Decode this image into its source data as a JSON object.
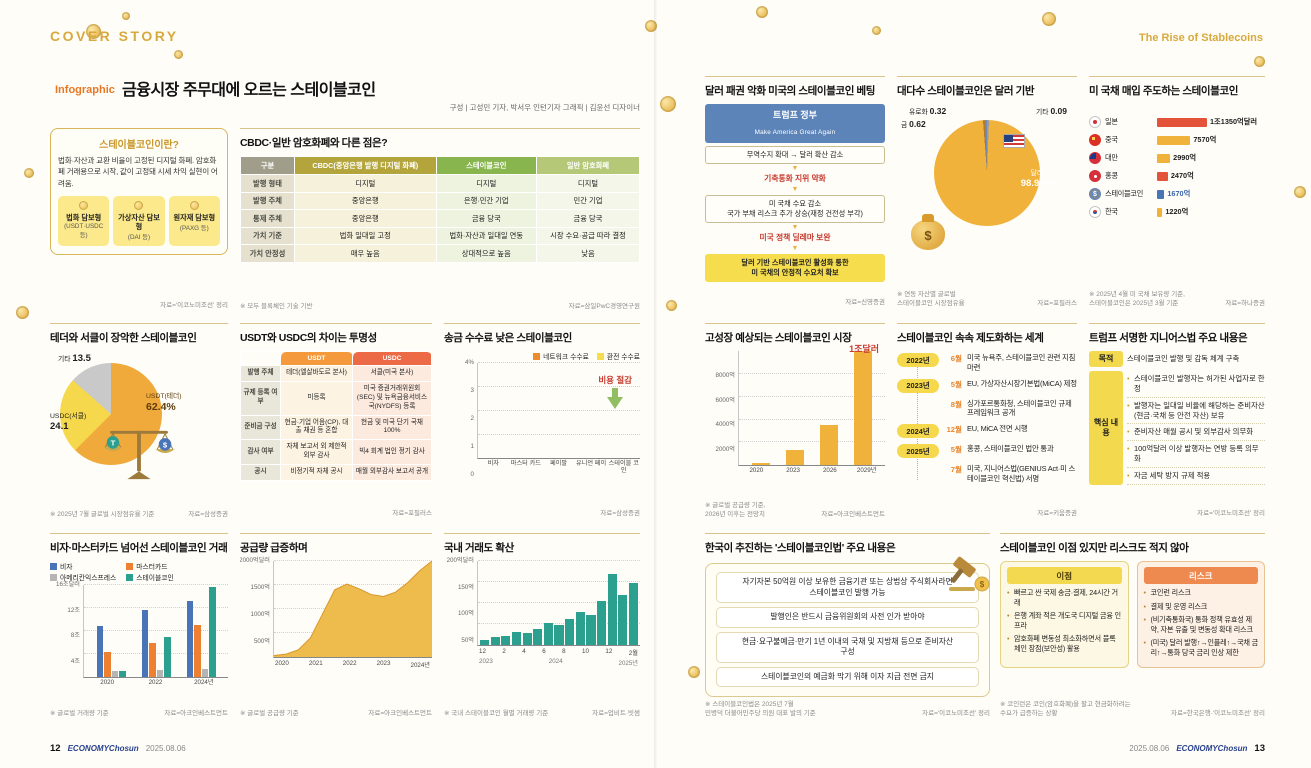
{
  "meta": {
    "cover_story": "COVER STORY",
    "rise": "The Rise of Stablecoins",
    "infographic": "Infographic",
    "title": "금융시장 주무대에 오르는 스테이블코인",
    "credit": "구성 | 고성민 기자, 박서우 인턴기자   그래픽 | 김윤선 디자이너",
    "footer_left": {
      "page": "12",
      "brand": "ECONOMYChosun",
      "date": "2025.08.06"
    },
    "footer_right": {
      "page": "13",
      "brand": "ECONOMYChosun",
      "date": "2025.08.06"
    }
  },
  "colors": {
    "accent_gold": "#d8a93c",
    "accent_orange": "#e87722",
    "highlight_yellow": "#f6d84d",
    "brand_navy": "#27418c",
    "red_text": "#c63a2e",
    "teal": "#2ba08f"
  },
  "icons": {
    "coin-icon": "gold circle",
    "balance-scale-icon": "svg scale",
    "money-bag-icon": "$",
    "us-flag-icon": "stars and stripes",
    "gavel-icon": "svg gavel",
    "down-arrow-icon": "▼",
    "flag-icons": [
      "jp",
      "cn",
      "tw",
      "hk",
      "coin",
      "kr"
    ]
  },
  "what_is": {
    "title": "스테이블코인이란?",
    "desc": "법화·자산과 교환 비율이 고정된 디지털 화폐. 암호화폐 거래용으로 시작, 값이 고정돼 시세 차익 실현이 어려움.",
    "types": [
      {
        "name": "법화 담보형",
        "example": "(USDT·USDC 등)"
      },
      {
        "name": "가상자산 담보형",
        "example": "(DAI 등)"
      },
      {
        "name": "원자재 담보형",
        "example": "(PAXG 등)"
      }
    ],
    "source": "자료='이코노미조선' 정리"
  },
  "cbdc_table": {
    "title": "CBDC·일반 암호화폐와 다른 점은?",
    "headers": [
      "구분",
      "CBDC(중앙은행 발행 디지털 화폐)",
      "스테이블코인",
      "일반 암호화폐"
    ],
    "rows": [
      {
        "label": "발행 형태",
        "cells": [
          "디지털",
          "디지털",
          "디지털"
        ]
      },
      {
        "label": "발행 주체",
        "cells": [
          "중앙은행",
          "은행·민간 기업",
          "민간 기업"
        ]
      },
      {
        "label": "통제 주체",
        "cells": [
          "중앙은행",
          "금융 당국",
          "금융 당국"
        ]
      },
      {
        "label": "가치 기준",
        "cells": [
          "법화 일대일 고정",
          "법화·자산과 일대일 연동",
          "시장 수요·공급 따라 결정"
        ]
      },
      {
        "label": "가치 안정성",
        "cells": [
          "매우 높음",
          "상대적으로 높음",
          "낮음"
        ]
      }
    ],
    "note": "※ 모두 블록체인 기술 기반",
    "source": "자료=삼일PwC경영연구원"
  },
  "market_share": {
    "title": "테더와 서클이 장악한 스테이블코인",
    "note": "※ 2025년 7월 글로벌 시장점유율 기준",
    "source": "자료=삼성증권"
  },
  "usdt_usdc": {
    "title": "USDT와 USDC의 차이는 투명성",
    "col1": "USDT",
    "col2": "USDC",
    "rows": [
      {
        "label": "발행 주체",
        "usdt": "테더(엘살바도르 본사)",
        "usdc": "서클(미국 본사)"
      },
      {
        "label": "규제 등록 여부",
        "usdt": "미등록",
        "usdc": "미국 증권거래위원회(SEC) 및 뉴욕금융서비스국(NYDFS) 등록"
      },
      {
        "label": "준비금 구성",
        "usdt": "현금·기업 어음(CP), 대출 채권 등 혼합",
        "usdc": "현금 및 미국 단기 국채 100%"
      },
      {
        "label": "감사 여부",
        "usdt": "자체 보고서 외 제한적 외부 감사",
        "usdc": "빅4 회계 법인 정기 감사"
      },
      {
        "label": "공시",
        "usdt": "비정기적 자체 공시",
        "usdc": "매월 외부감사 보고서 공개"
      }
    ],
    "source": "자료=포필러스"
  },
  "fees": {
    "title": "송금 수수료 낮은 스테이블코인",
    "annotation": "비용 절감",
    "source": "자료=삼성증권"
  },
  "volume": {
    "title": "비자·마스터카드 넘어선 스테이블코인 거래",
    "note": "※ 글로벌 거래량 기준",
    "source": "자료=아크인베스트먼트"
  },
  "supply": {
    "title": "공급량 급증하며",
    "note": "※ 글로벌 공급량 기준",
    "source": "자료=아크인베스트먼트"
  },
  "domestic": {
    "title": "국내 거래도 확산",
    "note": "※ 국내 스테이블코인 월별 거래량 기준",
    "source": "자료=업비트·빗썸"
  },
  "betting": {
    "title": "달러 패권 악화 미국의 스테이블코인 베팅",
    "header1": "트럼프 정부",
    "header2": "Make America Great Again",
    "steps": [
      {
        "type": "box",
        "text": "무역수지 확대 → 달러 확산 감소"
      },
      {
        "type": "red",
        "text": "기축통화 지위 약화"
      },
      {
        "type": "box",
        "text": "미 국채 수요 감소\n국가 부채 리스크 추가 상승(재정 건전성 부각)"
      },
      {
        "type": "red",
        "text": "미국 정책 딜레마 보완"
      },
      {
        "type": "yellow",
        "text": "달러 기반 스테이블코인 활성화 통한\n미 국채의 안정적 수요처 확보"
      }
    ],
    "source": "자료=신영증권"
  },
  "dollar_based": {
    "title": "대다수 스테이블코인은 달러 기반",
    "note": "※ 연동 자산별 글로벌\n스테이블코인 시장점유율",
    "source": "자료=포필러스"
  },
  "treasury": {
    "title": "미 국채 매입 주도하는 스테이블코인",
    "note": "※ 2025년 4월 미 국채 보유량 기준,\n스테이블코인은 2025년 3월 기준",
    "source": "자료=하나증권"
  },
  "forecast": {
    "title": "고성장 예상되는 스테이블코인 시장",
    "annotation": "1조달러",
    "note": "※ 글로벌 공급량 기준,\n2026년 이후는 전망치",
    "source": "자료=아크인베스트먼트"
  },
  "regulation": {
    "title": "스테이블코인 속속 제도화하는 세계",
    "items": [
      {
        "year": "2022년",
        "month": "6월",
        "text": "미국 뉴욕주, 스테이블코인 관련 지침 마련"
      },
      {
        "year": "2023년",
        "month": "5월",
        "text": "EU, 가상자산시장기본법(MiCA) 제정"
      },
      {
        "year": "",
        "month": "8월",
        "text": "싱가포르통화청, 스테이블코인 규제 프레임워크 공개"
      },
      {
        "year": "2024년",
        "month": "12월",
        "text": "EU, MiCA 전면 시행"
      },
      {
        "year": "2025년",
        "month": "5월",
        "text": "홍콩, 스테이블코인 법안 통과"
      },
      {
        "year": "",
        "month": "7월",
        "text": "미국, 지니어스법(GENIUS Act·미 스테이블코인 혁신법) 서명"
      }
    ],
    "source": "자료=키움증권"
  },
  "genius": {
    "title": "트럼프 서명한 지니어스법 주요 내용은",
    "purpose_label": "목적",
    "purpose": "스테이블코인 발행 및 감독 체계 구축",
    "core_label": "핵심 내용",
    "core": [
      "스테이블코인 발행자는 허가된 사업자로 한정",
      "발행자는 일대일 비율에 해당하는 준비자산(현금·국채 등 안전 자산) 보유",
      "준비자산 매월 공시 및 외부감사 의무화",
      "100억달러 이상 발행자는 연방 등록 의무화",
      "자금 세탁 방지 규제 적용"
    ],
    "source": "자료='이코노미조선' 정리"
  },
  "korea_law": {
    "title": "한국이 추진하는 '스테이블코인법' 주요 내용은",
    "items": [
      "자기자본 50억원 이상 보유한 금융기관 또는 상법상 주식회사라면 스테이블코인 발행 가능",
      "발행인은 반드시 금융위원회의 사전 인가 받아야",
      "현금·요구불예금·만기 1년 이내의 국채 및 지방채 등으로 준비자산 구성",
      "스테이블코인의 예금화 막기 위해 이자 지급 전면 금지"
    ],
    "note": "※ 스테이블코인법은 2025년 7월\n민병덕 더불어민주당 의원 대표 발의 기준",
    "source": "자료='이코노미조선' 정리"
  },
  "pros_cons": {
    "title": "스테이블코인 이점 있지만 리스크도 적지 않아",
    "pros_label": "이점",
    "pros": [
      "빠르고 싼 국제 송금·결제, 24시간 거래",
      "은행 계좌 적은 개도국 디지털 금융 인프라",
      "암호화폐 변동성 최소화하면서 블록체인 장점(보안성) 활용"
    ],
    "cons_label": "리스크",
    "cons": [
      "코인런 리스크",
      "결제 및 운영 리스크",
      "(비기축통화국) 통화 정책 유효성 제약, 자본 유출 및 변동성 확대 리스크",
      "(미국) 달러 발행↑→인플레↑→국채 금리↑→통화 당국 금리 인상 제한"
    ],
    "note": "※ 코인런은 코인(암호화폐)을 팔고 현금화하려는\n수요가 급증하는 상황",
    "source": "자료=한국은행·'이코노미조선' 정리"
  },
  "chart_data": [
    {
      "id": "market_share",
      "type": "pie",
      "title": "테더와 서클이 장악한 스테이블코인",
      "slices": [
        {
          "label": "USDT(테더)",
          "value": 62.4,
          "display": "62.4%",
          "color": "#f0a93b"
        },
        {
          "label": "USDC(서클)",
          "value": 24.1,
          "display": "24.1",
          "color": "#f6d84d"
        },
        {
          "label": "기타",
          "value": 13.5,
          "display": "13.5",
          "color": "#c9c9c9"
        }
      ]
    },
    {
      "id": "fees",
      "type": "bar",
      "stacked": true,
      "categories": [
        "비자",
        "마스터 카드",
        "페이팔",
        "유니언 페이",
        "스테이블 코인"
      ],
      "series": [
        {
          "name": "네트워크 수수료",
          "color": "#ef8a2c",
          "values": [
            2.2,
            2.0,
            2.4,
            1.8,
            0.3
          ]
        },
        {
          "name": "환전 수수료",
          "color": "#f6dd4e",
          "values": [
            1.0,
            1.1,
            1.0,
            0.8,
            0.1
          ]
        }
      ],
      "unit": "%",
      "ylim": 4,
      "ytick_values": [
        0,
        1,
        2,
        3,
        4
      ],
      "ytick_labels": [
        "0",
        "1",
        "2",
        "3",
        "4%"
      ]
    },
    {
      "id": "volume",
      "type": "bar",
      "grouped": true,
      "categories": [
        "2020",
        "2022",
        "2024년"
      ],
      "series": [
        {
          "name": "비자",
          "color": "#4a74b8",
          "values": [
            8.8,
            11.6,
            13.2
          ]
        },
        {
          "name": "마스터카드",
          "color": "#ee8031",
          "values": [
            4.4,
            6.0,
            9.0
          ]
        },
        {
          "name": "아메리칸익스프레스",
          "color": "#b5b5b5",
          "values": [
            1.0,
            1.2,
            1.5
          ]
        },
        {
          "name": "스테이블코인",
          "color": "#2ba08f",
          "values": [
            1.0,
            6.9,
            15.6
          ]
        }
      ],
      "unit": "조달러",
      "ylim": 16,
      "ytick_values": [
        4,
        8,
        12,
        16
      ],
      "ytick_labels": [
        "4조",
        "8조",
        "12조",
        "16조달러"
      ]
    },
    {
      "id": "supply",
      "type": "area",
      "color": "#eebb4d",
      "xlabels": [
        "2020",
        "2021",
        "2022",
        "2023",
        "2024년"
      ],
      "values": [
        30,
        60,
        150,
        400,
        900,
        1400,
        1520,
        1420,
        1300,
        1260,
        1350,
        1550,
        1800,
        2000
      ],
      "unit": "억달러",
      "ylim": 2000,
      "ytick_values": [
        500,
        1000,
        1500,
        2000
      ],
      "ytick_labels": [
        "500억",
        "1000억",
        "1500억",
        "2000억달러"
      ]
    },
    {
      "id": "domestic",
      "type": "bar",
      "color": "#2ba08f",
      "values": [
        12,
        18,
        22,
        30,
        28,
        38,
        52,
        48,
        62,
        78,
        72,
        105,
        168,
        118,
        148
      ],
      "xlabels": [
        "12",
        "2",
        "4",
        "6",
        "8",
        "10",
        "12",
        "2월"
      ],
      "xlabels2": [
        "2023",
        "2024",
        "2025년"
      ],
      "unit": "억달러",
      "ylim": 200,
      "ytick_values": [
        50,
        100,
        150,
        200
      ],
      "ytick_labels": [
        "50억",
        "100억",
        "150억",
        "200억달러"
      ]
    },
    {
      "id": "dollar",
      "type": "pie",
      "slices": [
        {
          "label": "기타",
          "value": 0.09,
          "display": "0.09",
          "color": "#9a9a9a"
        },
        {
          "label": "달러",
          "value": 98.97,
          "display": "98.97%",
          "color": "#f0b23a"
        },
        {
          "label": "금",
          "value": 0.62,
          "display": "0.62",
          "color": "#b07830"
        },
        {
          "label": "유로화",
          "value": 0.32,
          "display": "0.32",
          "color": "#6b8cba"
        }
      ]
    },
    {
      "id": "treasury",
      "type": "hbar",
      "unit": "억달러",
      "items": [
        {
          "label": "일본",
          "flag": "jp",
          "value": 11350,
          "display": "1조1350억달러",
          "color": "#e2533a"
        },
        {
          "label": "중국",
          "flag": "cn",
          "value": 7570,
          "display": "7570억",
          "color": "#f0b23a"
        },
        {
          "label": "대만",
          "flag": "tw",
          "value": 2990,
          "display": "2990억",
          "color": "#f0b23a"
        },
        {
          "label": "홍콩",
          "flag": "hk",
          "value": 2470,
          "display": "2470억",
          "color": "#e2533a"
        },
        {
          "label": "스테이블코인",
          "flag": "coin",
          "value": 1670,
          "display": "1670억",
          "color": "#4a74b8",
          "value_color": "#3a64a8"
        },
        {
          "label": "한국",
          "flag": "kr",
          "value": 1220,
          "display": "1220억",
          "color": "#f0b23a"
        }
      ]
    },
    {
      "id": "forecast",
      "type": "bar",
      "color": "#f0b23a",
      "categories": [
        "2020",
        "2023",
        "2026",
        "2029년"
      ],
      "values": [
        200,
        1300,
        3500,
        10000
      ],
      "unit": "억달러",
      "ylim": 10000,
      "ytick_values": [
        2000,
        4000,
        6000,
        8000
      ],
      "ytick_labels": [
        "2000억",
        "4000억",
        "6000억",
        "8000억"
      ]
    }
  ]
}
